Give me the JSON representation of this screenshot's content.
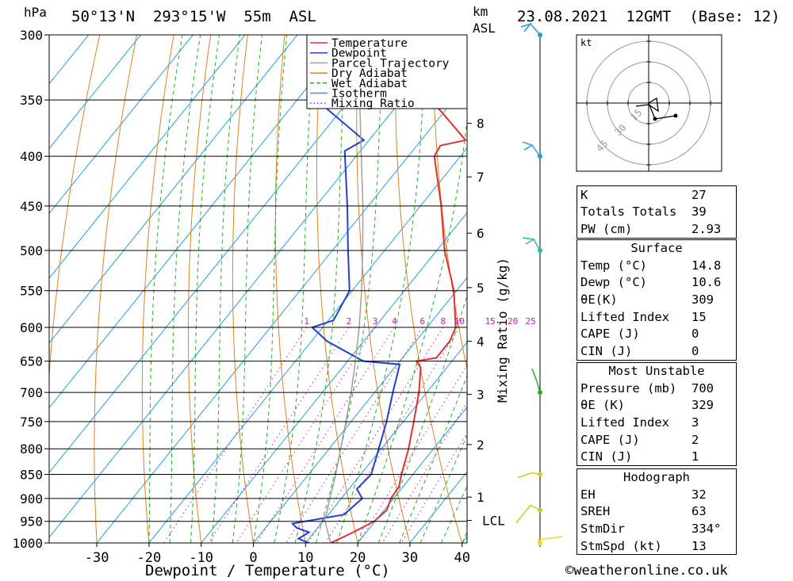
{
  "header": {
    "hpa_unit": "hPa",
    "location": "50°13'N  293°15'W  55m  ASL",
    "km_unit": "km",
    "asl_label": "ASL",
    "datetime": "23.08.2021  12GMT  (Base: 12)"
  },
  "chart_data": {
    "type": "skew-t",
    "xlabel": "Dewpoint / Temperature (°C)",
    "ylabel": "hPa",
    "mixing_ratio_axis_label": "Mixing Ratio (g/kg)",
    "pressure_levels": [
      300,
      350,
      400,
      450,
      500,
      550,
      600,
      650,
      700,
      750,
      800,
      850,
      900,
      950,
      1000
    ],
    "temp_ticks": [
      -30,
      -20,
      -10,
      0,
      10,
      20,
      30,
      40
    ],
    "temp_range": [
      -40,
      40
    ],
    "pressure_range": [
      300,
      1000
    ],
    "km_ticks": [
      {
        "label": "1",
        "p": 897
      },
      {
        "label": "2",
        "p": 792
      },
      {
        "label": "3",
        "p": 703
      },
      {
        "label": "4",
        "p": 620
      },
      {
        "label": "5",
        "p": 546
      },
      {
        "label": "6",
        "p": 480
      },
      {
        "label": "7",
        "p": 420
      },
      {
        "label": "8",
        "p": 370
      }
    ],
    "lcl": {
      "label": "LCL",
      "p": 948
    },
    "mixing_ratio_labels": [
      "1",
      "2",
      "3",
      "4",
      "6",
      "8",
      "10",
      "15",
      "20",
      "25"
    ],
    "legend": [
      {
        "name": "Temperature",
        "color": "#e03030",
        "style": "solid"
      },
      {
        "name": "Dewpoint",
        "color": "#2040d0",
        "style": "solid"
      },
      {
        "name": "Parcel Trajectory",
        "color": "#a0a0a0",
        "style": "solid"
      },
      {
        "name": "Dry Adiabat",
        "color": "#e08020",
        "style": "solid"
      },
      {
        "name": "Wet Adiabat",
        "color": "#20b020",
        "style": "dashed"
      },
      {
        "name": "Isotherm",
        "color": "#20a0e0",
        "style": "solid"
      },
      {
        "name": "Mixing Ratio",
        "color": "#c020a0",
        "style": "dotted"
      }
    ],
    "legend_position": "top-right",
    "series": [
      {
        "name": "Temperature",
        "points": [
          {
            "p": 1000,
            "t": 14.8
          },
          {
            "p": 975,
            "t": 17.5
          },
          {
            "p": 950,
            "t": 19.8
          },
          {
            "p": 925,
            "t": 20.5
          },
          {
            "p": 900,
            "t": 19.5
          },
          {
            "p": 875,
            "t": 19.2
          },
          {
            "p": 850,
            "t": 17.8
          },
          {
            "p": 800,
            "t": 15.2
          },
          {
            "p": 750,
            "t": 12.0
          },
          {
            "p": 700,
            "t": 8.5
          },
          {
            "p": 660,
            "t": 5.0
          },
          {
            "p": 650,
            "t": 3.2
          },
          {
            "p": 645,
            "t": 6.5
          },
          {
            "p": 620,
            "t": 6.5
          },
          {
            "p": 600,
            "t": 5.5
          },
          {
            "p": 550,
            "t": -0.5
          },
          {
            "p": 500,
            "t": -8.5
          },
          {
            "p": 450,
            "t": -16.0
          },
          {
            "p": 400,
            "t": -25.0
          },
          {
            "p": 390,
            "t": -25.5
          },
          {
            "p": 385,
            "t": -21.5
          },
          {
            "p": 360,
            "t": -30.5
          },
          {
            "p": 350,
            "t": -34.5
          },
          {
            "p": 300,
            "t": -45.5
          }
        ]
      },
      {
        "name": "Dewpoint",
        "points": [
          {
            "p": 1000,
            "t": 10.6
          },
          {
            "p": 990,
            "t": 8.0
          },
          {
            "p": 975,
            "t": 9.0
          },
          {
            "p": 965,
            "t": 6.0
          },
          {
            "p": 955,
            "t": 4.5
          },
          {
            "p": 935,
            "t": 13.0
          },
          {
            "p": 900,
            "t": 14.0
          },
          {
            "p": 880,
            "t": 11.5
          },
          {
            "p": 850,
            "t": 12.0
          },
          {
            "p": 800,
            "t": 9.5
          },
          {
            "p": 750,
            "t": 6.8
          },
          {
            "p": 700,
            "t": 3.5
          },
          {
            "p": 655,
            "t": 0.5
          },
          {
            "p": 650,
            "t": -7.0
          },
          {
            "p": 620,
            "t": -17.0
          },
          {
            "p": 600,
            "t": -22.0
          },
          {
            "p": 590,
            "t": -19.0
          },
          {
            "p": 550,
            "t": -20.5
          },
          {
            "p": 500,
            "t": -27.0
          },
          {
            "p": 450,
            "t": -34.0
          },
          {
            "p": 395,
            "t": -43.0
          },
          {
            "p": 385,
            "t": -41.0
          },
          {
            "p": 355,
            "t": -54.0
          },
          {
            "p": 300,
            "t": -63.0
          }
        ]
      },
      {
        "name": "Parcel Trajectory",
        "points": [
          {
            "p": 1000,
            "t": 14.8
          },
          {
            "p": 948,
            "t": 10.2
          },
          {
            "p": 900,
            "t": 7.8
          },
          {
            "p": 850,
            "t": 5.2
          },
          {
            "p": 800,
            "t": 2.2
          },
          {
            "p": 750,
            "t": -1.0
          },
          {
            "p": 700,
            "t": -4.5
          },
          {
            "p": 650,
            "t": -8.5
          },
          {
            "p": 600,
            "t": -13.0
          },
          {
            "p": 550,
            "t": -18.2
          },
          {
            "p": 500,
            "t": -24.2
          },
          {
            "p": 450,
            "t": -31.0
          },
          {
            "p": 400,
            "t": -39.0
          },
          {
            "p": 350,
            "t": -48.0
          },
          {
            "p": 300,
            "t": -58.0
          }
        ]
      }
    ],
    "wind_barbs": [
      {
        "p": 300,
        "color": "#20a0e0"
      },
      {
        "p": 400,
        "color": "#20a0e0"
      },
      {
        "p": 500,
        "color": "#20c0a0"
      },
      {
        "p": 700,
        "color": "#20b020"
      },
      {
        "p": 850,
        "color": "#d0d020"
      },
      {
        "p": 925,
        "color": "#a0e020"
      },
      {
        "p": 1000,
        "color": "#e0e020"
      }
    ]
  },
  "hodograph": {
    "unit": "kt",
    "ring_labels": [
      "15",
      "30",
      "45"
    ]
  },
  "indices": {
    "rows": [
      {
        "label": "K",
        "value": "27"
      },
      {
        "label": "Totals Totals",
        "value": "39"
      },
      {
        "label": "PW (cm)",
        "value": "2.93"
      }
    ]
  },
  "surface": {
    "title": "Surface",
    "rows": [
      {
        "label": "Temp (°C)",
        "value": "14.8"
      },
      {
        "label": "Dewp (°C)",
        "value": "10.6"
      },
      {
        "label": "θE(K)",
        "value": "309"
      },
      {
        "label": "Lifted Index",
        "value": "15"
      },
      {
        "label": "CAPE (J)",
        "value": "0"
      },
      {
        "label": "CIN (J)",
        "value": "0"
      }
    ]
  },
  "most_unstable": {
    "title": "Most Unstable",
    "rows": [
      {
        "label": "Pressure (mb)",
        "value": "700"
      },
      {
        "label": "θE (K)",
        "value": "329"
      },
      {
        "label": "Lifted Index",
        "value": "3"
      },
      {
        "label": "CAPE (J)",
        "value": "2"
      },
      {
        "label": "CIN (J)",
        "value": "1"
      }
    ]
  },
  "hodograph_table": {
    "title": "Hodograph",
    "rows": [
      {
        "label": "EH",
        "value": "32"
      },
      {
        "label": "SREH",
        "value": "63"
      },
      {
        "label": "StmDir",
        "value": "334°"
      },
      {
        "label": "StmSpd (kt)",
        "value": "13"
      }
    ]
  },
  "footer": {
    "copyright": "©weatheronline.co.uk"
  }
}
